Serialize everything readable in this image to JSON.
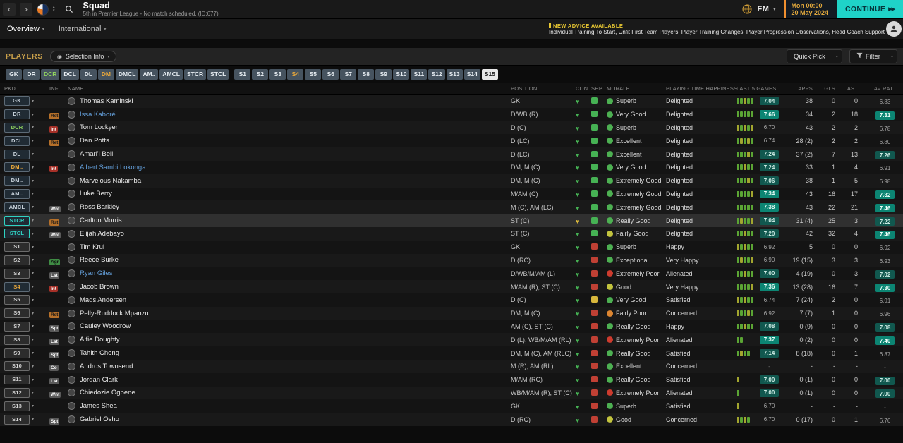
{
  "titlebar": {
    "title": "Squad",
    "subtitle": "5th in Premier League - No match scheduled. (ID:677)",
    "fm_logo": "FM",
    "date_line1": "Mon 00:00",
    "date_line2": "20 May 2024",
    "continue_label": "CONTINUE"
  },
  "nav": {
    "tabs": [
      {
        "label": "Overview"
      },
      {
        "label": "International"
      }
    ],
    "advice_title": "NEW ADVICE AVAILABLE",
    "advice_text": "Individual Training To Start, Unfit First Team Players, Player Training Changes, Player Progression Observations, Head Coach Support"
  },
  "toolbar": {
    "section_label": "PLAYERS",
    "selection_info_label": "Selection Info",
    "quick_pick_label": "Quick Pick",
    "filter_label": "Filter"
  },
  "position_tabs": [
    {
      "label": "GK"
    },
    {
      "label": "DR"
    },
    {
      "label": "DCR",
      "style": "green"
    },
    {
      "label": "DCL"
    },
    {
      "label": "DL"
    },
    {
      "label": "DM",
      "style": "orange"
    },
    {
      "label": "DMCL"
    },
    {
      "label": "AM.."
    },
    {
      "label": "AMCL"
    },
    {
      "label": "STCR"
    },
    {
      "label": "STCL"
    },
    {
      "label": "S1",
      "gap_before": true
    },
    {
      "label": "S2"
    },
    {
      "label": "S3"
    },
    {
      "label": "S4",
      "style": "orange"
    },
    {
      "label": "S5"
    },
    {
      "label": "S6"
    },
    {
      "label": "S7"
    },
    {
      "label": "S8"
    },
    {
      "label": "S9"
    },
    {
      "label": "S10"
    },
    {
      "label": "S11"
    },
    {
      "label": "S12"
    },
    {
      "label": "S13"
    },
    {
      "label": "S14"
    },
    {
      "label": "S15",
      "style": "selected"
    }
  ],
  "colors": {
    "accent_teal": "#1fd3c8",
    "advice_yellow": "#e9c832",
    "date_orange": "#ef8f2f",
    "players_gold": "#c9a04a",
    "loan_blue": "#64a0dc"
  },
  "table": {
    "columns": [
      "PKD",
      "INF",
      "NAME",
      "POSITION",
      "CON",
      "SHP",
      "MORALE",
      "PLAYING TIME HAPPINESS",
      "LAST 5 GAMES",
      "APPS",
      "GLS",
      "AST",
      "AV RAT"
    ],
    "players": [
      {
        "pkd": "GK",
        "pkd_style": "default",
        "inf": "",
        "inf_style": "",
        "name": "Thomas Kaminski",
        "loan": false,
        "position": "GK",
        "con": "green",
        "shp": "green",
        "morale": "Superb",
        "morale_color": "green",
        "happiness": "Delighted",
        "last5_bars": [
          "g",
          "g",
          "y",
          "g",
          "g"
        ],
        "last5_rating": "7.04",
        "last5_tier": "mid",
        "apps": "38",
        "gls": "0",
        "ast": "0",
        "avrat": "6.83",
        "avrat_tier": "none",
        "selected": false
      },
      {
        "pkd": "DR",
        "pkd_style": "default",
        "inf": "Ret",
        "inf_style": "orange",
        "name": "Issa Kaboré",
        "loan": true,
        "position": "D/WB (R)",
        "con": "green",
        "shp": "green",
        "morale": "Very Good",
        "morale_color": "green",
        "happiness": "Delighted",
        "last5_bars": [
          "g",
          "g",
          "g",
          "g",
          "g"
        ],
        "last5_rating": "7.66",
        "last5_tier": "high",
        "apps": "34",
        "gls": "2",
        "ast": "18",
        "avrat": "7.31",
        "avrat_tier": "high",
        "selected": false
      },
      {
        "pkd": "DCR",
        "pkd_style": "green",
        "inf": "Int",
        "inf_style": "red",
        "name": "Tom Lockyer",
        "loan": false,
        "position": "D (C)",
        "con": "green",
        "shp": "green",
        "morale": "Superb",
        "morale_color": "green",
        "happiness": "Delighted",
        "last5_bars": [
          "y",
          "g",
          "y",
          "g",
          "y"
        ],
        "last5_rating": "6.70",
        "last5_tier": "none",
        "apps": "43",
        "gls": "2",
        "ast": "2",
        "avrat": "6.78",
        "avrat_tier": "none",
        "selected": false
      },
      {
        "pkd": "DCL",
        "pkd_style": "default",
        "inf": "Ret",
        "inf_style": "orange",
        "name": "Dan Potts",
        "loan": false,
        "position": "D (LC)",
        "con": "green",
        "shp": "green",
        "morale": "Excellent",
        "morale_color": "green",
        "happiness": "Delighted",
        "last5_bars": [
          "g",
          "y",
          "g",
          "y",
          "g"
        ],
        "last5_rating": "6.74",
        "last5_tier": "none",
        "apps": "28 (2)",
        "gls": "2",
        "ast": "2",
        "avrat": "6.80",
        "avrat_tier": "none",
        "selected": false
      },
      {
        "pkd": "DL",
        "pkd_style": "default",
        "inf": "",
        "inf_style": "",
        "name": "Amari'i Bell",
        "loan": false,
        "position": "D (LC)",
        "con": "green",
        "shp": "green",
        "morale": "Excellent",
        "morale_color": "green",
        "happiness": "Delighted",
        "last5_bars": [
          "g",
          "g",
          "g",
          "y",
          "g"
        ],
        "last5_rating": "7.24",
        "last5_tier": "mid",
        "apps": "37 (2)",
        "gls": "7",
        "ast": "13",
        "avrat": "7.26",
        "avrat_tier": "mid",
        "selected": false
      },
      {
        "pkd": "DM..",
        "pkd_style": "orange",
        "inf": "Int",
        "inf_style": "red",
        "name": "Albert Sambi Lokonga",
        "loan": true,
        "position": "DM, M (C)",
        "con": "green",
        "shp": "green",
        "morale": "Very Good",
        "morale_color": "green",
        "happiness": "Delighted",
        "last5_bars": [
          "g",
          "g",
          "y",
          "g",
          "g"
        ],
        "last5_rating": "7.24",
        "last5_tier": "mid",
        "apps": "33",
        "gls": "1",
        "ast": "4",
        "avrat": "6.91",
        "avrat_tier": "none",
        "selected": false
      },
      {
        "pkd": "DM..",
        "pkd_style": "default",
        "inf": "",
        "inf_style": "",
        "name": "Marvelous Nakamba",
        "loan": false,
        "position": "DM, M (C)",
        "con": "green",
        "shp": "green",
        "morale": "Extremely Good",
        "morale_color": "green",
        "happiness": "Delighted",
        "last5_bars": [
          "g",
          "g",
          "g",
          "y",
          "g"
        ],
        "last5_rating": "7.06",
        "last5_tier": "mid",
        "apps": "38",
        "gls": "1",
        "ast": "5",
        "avrat": "6.98",
        "avrat_tier": "none",
        "selected": false
      },
      {
        "pkd": "AM..",
        "pkd_style": "default",
        "inf": "",
        "inf_style": "",
        "name": "Luke Berry",
        "loan": false,
        "position": "M/AM (C)",
        "con": "green",
        "shp": "green",
        "morale": "Extremely Good",
        "morale_color": "green",
        "happiness": "Delighted",
        "last5_bars": [
          "g",
          "g",
          "g",
          "g",
          "y"
        ],
        "last5_rating": "7.34",
        "last5_tier": "high",
        "apps": "43",
        "gls": "16",
        "ast": "17",
        "avrat": "7.32",
        "avrat_tier": "high",
        "selected": false
      },
      {
        "pkd": "AMCL",
        "pkd_style": "default",
        "inf": "Wnt",
        "inf_style": "gray",
        "name": "Ross Barkley",
        "loan": false,
        "position": "M (C), AM (LC)",
        "con": "green",
        "shp": "green",
        "morale": "Extremely Good",
        "morale_color": "green",
        "happiness": "Delighted",
        "last5_bars": [
          "g",
          "g",
          "g",
          "g",
          "g"
        ],
        "last5_rating": "7.38",
        "last5_tier": "high",
        "apps": "43",
        "gls": "22",
        "ast": "21",
        "avrat": "7.46",
        "avrat_tier": "high",
        "selected": false
      },
      {
        "pkd": "STCR",
        "pkd_style": "teal",
        "inf": "Rst",
        "inf_style": "orange",
        "name": "Carlton Morris",
        "loan": false,
        "position": "ST (C)",
        "con": "yellow",
        "shp": "green",
        "morale": "Really Good",
        "morale_color": "green",
        "happiness": "Delighted",
        "last5_bars": [
          "g",
          "y",
          "g",
          "g",
          "y"
        ],
        "last5_rating": "7.04",
        "last5_tier": "mid",
        "apps": "31 (4)",
        "gls": "25",
        "ast": "3",
        "avrat": "7.22",
        "avrat_tier": "mid",
        "selected": true
      },
      {
        "pkd": "STCL",
        "pkd_style": "teal",
        "inf": "Wnt",
        "inf_style": "gray",
        "name": "Elijah Adebayo",
        "loan": false,
        "position": "ST (C)",
        "con": "green",
        "shp": "green",
        "morale": "Fairly Good",
        "morale_color": "yellow",
        "happiness": "Delighted",
        "last5_bars": [
          "g",
          "g",
          "y",
          "g",
          "g"
        ],
        "last5_rating": "7.20",
        "last5_tier": "mid",
        "apps": "42",
        "gls": "32",
        "ast": "4",
        "avrat": "7.46",
        "avrat_tier": "high",
        "selected": false
      },
      {
        "pkd": "S1",
        "pkd_style": "sub",
        "inf": "",
        "inf_style": "",
        "name": "Tim Krul",
        "loan": false,
        "position": "GK",
        "con": "green",
        "shp": "red",
        "morale": "Superb",
        "morale_color": "green",
        "happiness": "Happy",
        "last5_bars": [
          "y",
          "g",
          "y",
          "g",
          "g"
        ],
        "last5_rating": "6.92",
        "last5_tier": "none",
        "apps": "5",
        "gls": "0",
        "ast": "0",
        "avrat": "6.92",
        "avrat_tier": "none",
        "selected": false
      },
      {
        "pkd": "S2",
        "pkd_style": "sub",
        "inf": "Agr",
        "inf_style": "green",
        "name": "Reece Burke",
        "loan": false,
        "position": "D (RC)",
        "con": "green",
        "shp": "red",
        "morale": "Exceptional",
        "morale_color": "green",
        "happiness": "Very Happy",
        "last5_bars": [
          "g",
          "y",
          "g",
          "g",
          "y"
        ],
        "last5_rating": "6.90",
        "last5_tier": "none",
        "apps": "19 (15)",
        "gls": "3",
        "ast": "3",
        "avrat": "6.93",
        "avrat_tier": "none",
        "selected": false
      },
      {
        "pkd": "S3",
        "pkd_style": "sub",
        "inf": "Lst",
        "inf_style": "gray",
        "name": "Ryan Giles",
        "loan": true,
        "position": "D/WB/M/AM (L)",
        "con": "green",
        "shp": "red",
        "morale": "Extremely Poor",
        "morale_color": "red",
        "happiness": "Alienated",
        "last5_bars": [
          "g",
          "g",
          "y",
          "g",
          "g"
        ],
        "last5_rating": "7.00",
        "last5_tier": "mid",
        "apps": "4 (19)",
        "gls": "0",
        "ast": "3",
        "avrat": "7.02",
        "avrat_tier": "mid",
        "selected": false
      },
      {
        "pkd": "S4",
        "pkd_style": "orange",
        "inf": "Int",
        "inf_style": "red",
        "name": "Jacob Brown",
        "loan": false,
        "position": "M/AM (R), ST (C)",
        "con": "green",
        "shp": "red",
        "morale": "Good",
        "morale_color": "yellow",
        "happiness": "Very Happy",
        "last5_bars": [
          "g",
          "g",
          "g",
          "g",
          "y"
        ],
        "last5_rating": "7.36",
        "last5_tier": "high",
        "apps": "13 (28)",
        "gls": "16",
        "ast": "7",
        "avrat": "7.30",
        "avrat_tier": "high",
        "selected": false
      },
      {
        "pkd": "S5",
        "pkd_style": "sub",
        "inf": "",
        "inf_style": "",
        "name": "Mads Andersen",
        "loan": false,
        "position": "D (C)",
        "con": "green",
        "shp": "yellow",
        "morale": "Very Good",
        "morale_color": "green",
        "happiness": "Satisfied",
        "last5_bars": [
          "y",
          "g",
          "y",
          "g",
          "g"
        ],
        "last5_rating": "6.74",
        "last5_tier": "none",
        "apps": "7 (24)",
        "gls": "2",
        "ast": "0",
        "avrat": "6.91",
        "avrat_tier": "none",
        "selected": false
      },
      {
        "pkd": "S6",
        "pkd_style": "sub",
        "inf": "Rst",
        "inf_style": "orange",
        "name": "Pelly-Ruddock Mpanzu",
        "loan": false,
        "position": "DM, M (C)",
        "con": "green",
        "shp": "red",
        "morale": "Fairly Poor",
        "morale_color": "orange",
        "happiness": "Concerned",
        "last5_bars": [
          "y",
          "g",
          "g",
          "y",
          "g"
        ],
        "last5_rating": "6.92",
        "last5_tier": "none",
        "apps": "7 (7)",
        "gls": "1",
        "ast": "0",
        "avrat": "6.96",
        "avrat_tier": "none",
        "selected": false
      },
      {
        "pkd": "S7",
        "pkd_style": "sub",
        "inf": "Spt",
        "inf_style": "gray",
        "name": "Cauley Woodrow",
        "loan": false,
        "position": "AM (C), ST (C)",
        "con": "green",
        "shp": "red",
        "morale": "Really Good",
        "morale_color": "green",
        "happiness": "Happy",
        "last5_bars": [
          "g",
          "g",
          "y",
          "g",
          "g"
        ],
        "last5_rating": "7.08",
        "last5_tier": "mid",
        "apps": "0 (9)",
        "gls": "0",
        "ast": "0",
        "avrat": "7.08",
        "avrat_tier": "mid",
        "selected": false
      },
      {
        "pkd": "S8",
        "pkd_style": "sub",
        "inf": "Lst",
        "inf_style": "gray",
        "name": "Alfie Doughty",
        "loan": false,
        "position": "D (L), WB/M/AM (RL)",
        "con": "green",
        "shp": "red",
        "morale": "Extremely Poor",
        "morale_color": "red",
        "happiness": "Alienated",
        "last5_bars": [
          "g",
          "g"
        ],
        "last5_rating": "7.37",
        "last5_tier": "high",
        "apps": "0 (2)",
        "gls": "0",
        "ast": "0",
        "avrat": "7.40",
        "avrat_tier": "high",
        "selected": false
      },
      {
        "pkd": "S9",
        "pkd_style": "sub",
        "inf": "Spt",
        "inf_style": "gray",
        "name": "Tahith Chong",
        "loan": false,
        "position": "DM, M (C), AM (RLC)",
        "con": "green",
        "shp": "red",
        "morale": "Really Good",
        "morale_color": "green",
        "happiness": "Satisfied",
        "last5_bars": [
          "g",
          "y",
          "g",
          "g"
        ],
        "last5_rating": "7.14",
        "last5_tier": "mid",
        "apps": "8 (18)",
        "gls": "0",
        "ast": "1",
        "avrat": "6.87",
        "avrat_tier": "none",
        "selected": false
      },
      {
        "pkd": "S10",
        "pkd_style": "sub",
        "inf": "Co",
        "inf_style": "gray",
        "name": "Andros Townsend",
        "loan": false,
        "position": "M (R), AM (RL)",
        "con": "green",
        "shp": "red",
        "morale": "Excellent",
        "morale_color": "green",
        "happiness": "Concerned",
        "last5_bars": [],
        "last5_rating": "-",
        "last5_tier": "dash",
        "apps": "-",
        "gls": "-",
        "ast": "-",
        "avrat": "-",
        "avrat_tier": "dash",
        "selected": false
      },
      {
        "pkd": "S11",
        "pkd_style": "sub",
        "inf": "Lst",
        "inf_style": "gray",
        "name": "Jordan Clark",
        "loan": false,
        "position": "M/AM (RC)",
        "con": "green",
        "shp": "red",
        "morale": "Really Good",
        "morale_color": "green",
        "happiness": "Satisfied",
        "last5_bars": [
          "y"
        ],
        "last5_rating": "7.00",
        "last5_tier": "mid",
        "apps": "0 (1)",
        "gls": "0",
        "ast": "0",
        "avrat": "7.00",
        "avrat_tier": "mid",
        "selected": false
      },
      {
        "pkd": "S12",
        "pkd_style": "sub",
        "inf": "Wnt",
        "inf_style": "gray",
        "name": "Chiedozie Ogbene",
        "loan": false,
        "position": "WB/M/AM (R), ST (C)",
        "con": "green",
        "shp": "red",
        "morale": "Extremely Poor",
        "morale_color": "red",
        "happiness": "Alienated",
        "last5_bars": [
          "g"
        ],
        "last5_rating": "7.00",
        "last5_tier": "mid",
        "apps": "0 (1)",
        "gls": "0",
        "ast": "0",
        "avrat": "7.00",
        "avrat_tier": "mid",
        "selected": false
      },
      {
        "pkd": "S13",
        "pkd_style": "sub",
        "inf": "",
        "inf_style": "",
        "name": "James Shea",
        "loan": false,
        "position": "GK",
        "con": "green",
        "shp": "red",
        "morale": "Superb",
        "morale_color": "green",
        "happiness": "Satisfied",
        "last5_bars": [
          "y"
        ],
        "last5_rating": "6.70",
        "last5_tier": "none",
        "apps": "-",
        "gls": "-",
        "ast": "-",
        "avrat": "-",
        "avrat_tier": "dash",
        "selected": false
      },
      {
        "pkd": "S14",
        "pkd_style": "sub",
        "inf": "Spt",
        "inf_style": "gray",
        "name": "Gabriel Osho",
        "loan": false,
        "position": "D (RC)",
        "con": "green",
        "shp": "red",
        "morale": "Good",
        "morale_color": "yellow",
        "happiness": "Concerned",
        "last5_bars": [
          "y",
          "g",
          "y",
          "g"
        ],
        "last5_rating": "6.70",
        "last5_tier": "none",
        "apps": "0 (17)",
        "gls": "0",
        "ast": "1",
        "avrat": "6.76",
        "avrat_tier": "none",
        "selected": false
      }
    ]
  }
}
